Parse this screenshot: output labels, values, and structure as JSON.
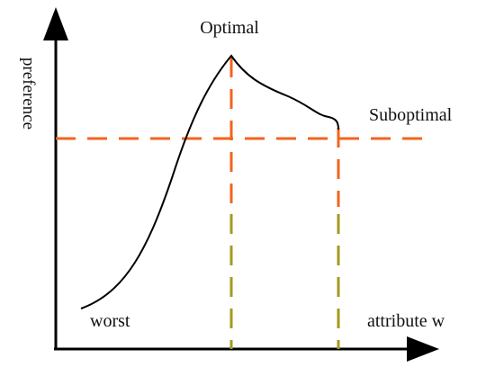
{
  "labels": {
    "optimal": "Optimal",
    "suboptimal": "Suboptimal",
    "worst": "worst",
    "x_axis": "attribute w",
    "y_axis": "preference"
  },
  "colors": {
    "axis": "#000000",
    "curve": "#000000",
    "dashed_orange": "#f0641e",
    "dashed_olive": "#a39a1f",
    "background": "#ffffff"
  }
}
